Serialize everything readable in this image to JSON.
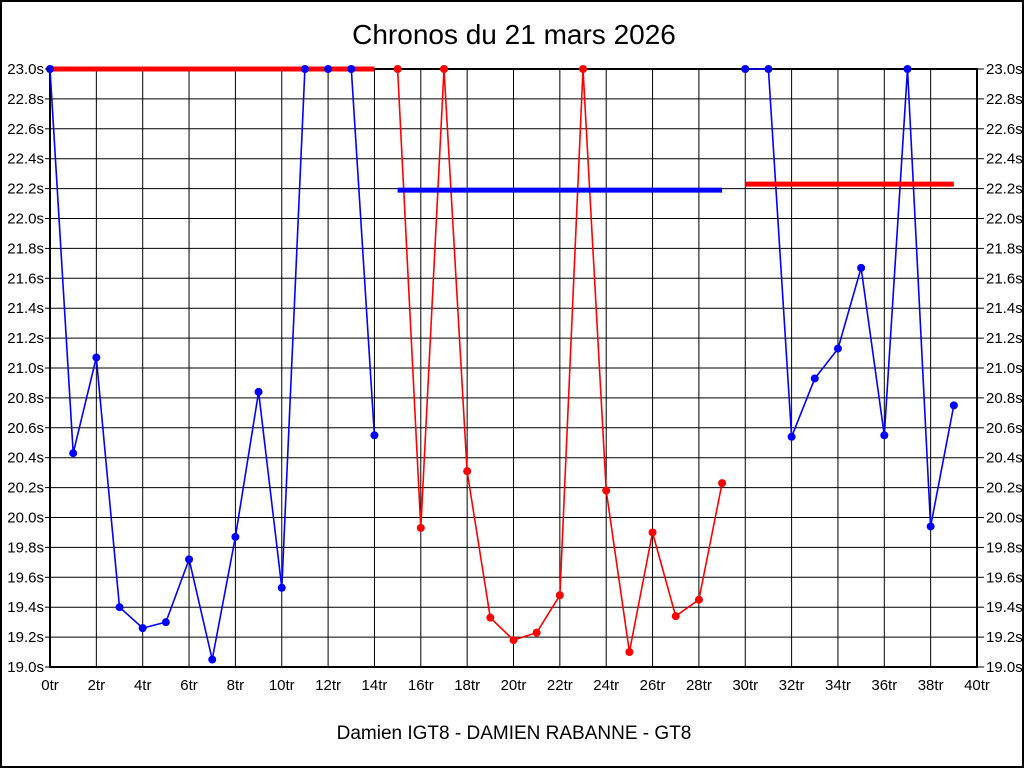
{
  "header": {
    "title": "Chronos du 21 mars 2026"
  },
  "footer": {
    "caption": "Damien IGT8 - DAMIEN RABANNE - GT8"
  },
  "chart_data": {
    "type": "line",
    "title": "Chronos du 21 mars 2026",
    "xlabel": "",
    "ylabel": "",
    "x_unit": "tr",
    "y_unit": "s",
    "xlim": [
      0,
      40
    ],
    "ylim": [
      19.0,
      23.0
    ],
    "x_tick_step": 2,
    "y_tick_step": 0.2,
    "grid": true,
    "y_tick_labels_both_sides": true,
    "colors": {
      "blue": "#0000ff",
      "red": "#ff0000",
      "grid": "#000000"
    },
    "series": [
      {
        "name": "blue",
        "color": "#0000ff",
        "points": [
          [
            0,
            23.0
          ],
          [
            1,
            20.43
          ],
          [
            2,
            21.07
          ],
          [
            3,
            19.4
          ],
          [
            4,
            19.26
          ],
          [
            5,
            19.3
          ],
          [
            6,
            19.72
          ],
          [
            7,
            19.05
          ],
          [
            8,
            19.87
          ],
          [
            9,
            20.84
          ],
          [
            10,
            19.53
          ],
          [
            11,
            23.0
          ],
          [
            12,
            23.0
          ],
          [
            13,
            23.0
          ],
          [
            14,
            20.55
          ],
          [
            30,
            23.0
          ],
          [
            31,
            23.0
          ],
          [
            32,
            20.54
          ],
          [
            33,
            20.93
          ],
          [
            34,
            21.13
          ],
          [
            35,
            21.67
          ],
          [
            36,
            20.55
          ],
          [
            37,
            23.0
          ],
          [
            38,
            19.94
          ],
          [
            39,
            20.75
          ]
        ]
      },
      {
        "name": "red",
        "color": "#ff0000",
        "points": [
          [
            15,
            23.0
          ],
          [
            16,
            19.93
          ],
          [
            17,
            23.0
          ],
          [
            18,
            20.31
          ],
          [
            19,
            19.33
          ],
          [
            20,
            19.18
          ],
          [
            21,
            19.23
          ],
          [
            22,
            19.48
          ],
          [
            23,
            23.0
          ],
          [
            24,
            20.18
          ],
          [
            25,
            19.1
          ],
          [
            26,
            19.9
          ],
          [
            27,
            19.34
          ],
          [
            28,
            19.45
          ],
          [
            29,
            20.23
          ]
        ]
      }
    ],
    "reference_lines": [
      {
        "color": "#ff0000",
        "y": 23.0,
        "x1": 0,
        "x2": 14
      },
      {
        "color": "#0000ff",
        "y": 22.19,
        "x1": 15,
        "x2": 29
      },
      {
        "color": "#ff0000",
        "y": 22.23,
        "x1": 30,
        "x2": 39
      }
    ]
  }
}
